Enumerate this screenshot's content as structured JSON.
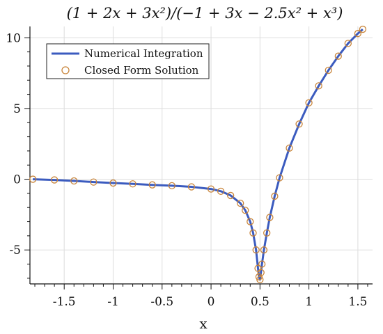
{
  "chart_data": {
    "type": "line",
    "title": "(1 + 2x + 3x²)/(−1 + 3x − 2.5x² + x³)",
    "xlabel": "x",
    "ylabel": "",
    "xlim": [
      -1.85,
      1.65
    ],
    "ylim": [
      -7.4,
      10.8
    ],
    "grid": true,
    "legend_position": "top-left",
    "x_ticks": [
      -1.5,
      -1,
      -0.5,
      0,
      0.5,
      1,
      1.5
    ],
    "x_tick_labels": [
      "-1.5",
      "-1",
      "-0.5",
      "0",
      "0.5",
      "1",
      "1.5"
    ],
    "y_ticks": [
      -5,
      0,
      5,
      10
    ],
    "y_tick_labels": [
      "-5",
      "0",
      "5",
      "10"
    ],
    "series": [
      {
        "name": "Numerical Integration",
        "style": "line",
        "color": "#3b5bbf",
        "x": [
          -1.82,
          -1.6,
          -1.4,
          -1.2,
          -1.0,
          -0.8,
          -0.6,
          -0.4,
          -0.2,
          0.0,
          0.1,
          0.2,
          0.3,
          0.35,
          0.4,
          0.43,
          0.46,
          0.48,
          0.49,
          0.5,
          0.51,
          0.52,
          0.54,
          0.57,
          0.6,
          0.65,
          0.7,
          0.8,
          0.9,
          1.0,
          1.1,
          1.2,
          1.3,
          1.4,
          1.5,
          1.55
        ],
        "y": [
          0.0,
          -0.05,
          -0.12,
          -0.2,
          -0.27,
          -0.33,
          -0.4,
          -0.46,
          -0.54,
          -0.69,
          -0.85,
          -1.15,
          -1.7,
          -2.2,
          -3.0,
          -3.8,
          -5.0,
          -6.3,
          -6.9,
          -7.1,
          -6.6,
          -6.0,
          -5.0,
          -3.8,
          -2.7,
          -1.2,
          0.1,
          2.2,
          3.9,
          5.4,
          6.6,
          7.7,
          8.7,
          9.6,
          10.3,
          10.6
        ]
      },
      {
        "name": "Closed Form Solution",
        "style": "markers",
        "color": "#c9853a",
        "x": [
          -1.82,
          -1.6,
          -1.4,
          -1.2,
          -1.0,
          -0.8,
          -0.6,
          -0.4,
          -0.2,
          0.0,
          0.1,
          0.2,
          0.3,
          0.35,
          0.4,
          0.43,
          0.46,
          0.48,
          0.49,
          0.5,
          0.51,
          0.52,
          0.54,
          0.57,
          0.6,
          0.65,
          0.7,
          0.8,
          0.9,
          1.0,
          1.1,
          1.2,
          1.3,
          1.4,
          1.5,
          1.55
        ],
        "y": [
          0.0,
          -0.05,
          -0.12,
          -0.2,
          -0.27,
          -0.33,
          -0.4,
          -0.46,
          -0.54,
          -0.69,
          -0.85,
          -1.15,
          -1.7,
          -2.2,
          -3.0,
          -3.8,
          -5.0,
          -6.3,
          -6.9,
          -7.1,
          -6.6,
          -6.0,
          -5.0,
          -3.8,
          -2.7,
          -1.2,
          0.1,
          2.2,
          3.9,
          5.4,
          6.6,
          7.7,
          8.7,
          9.6,
          10.3,
          10.6
        ]
      }
    ]
  }
}
